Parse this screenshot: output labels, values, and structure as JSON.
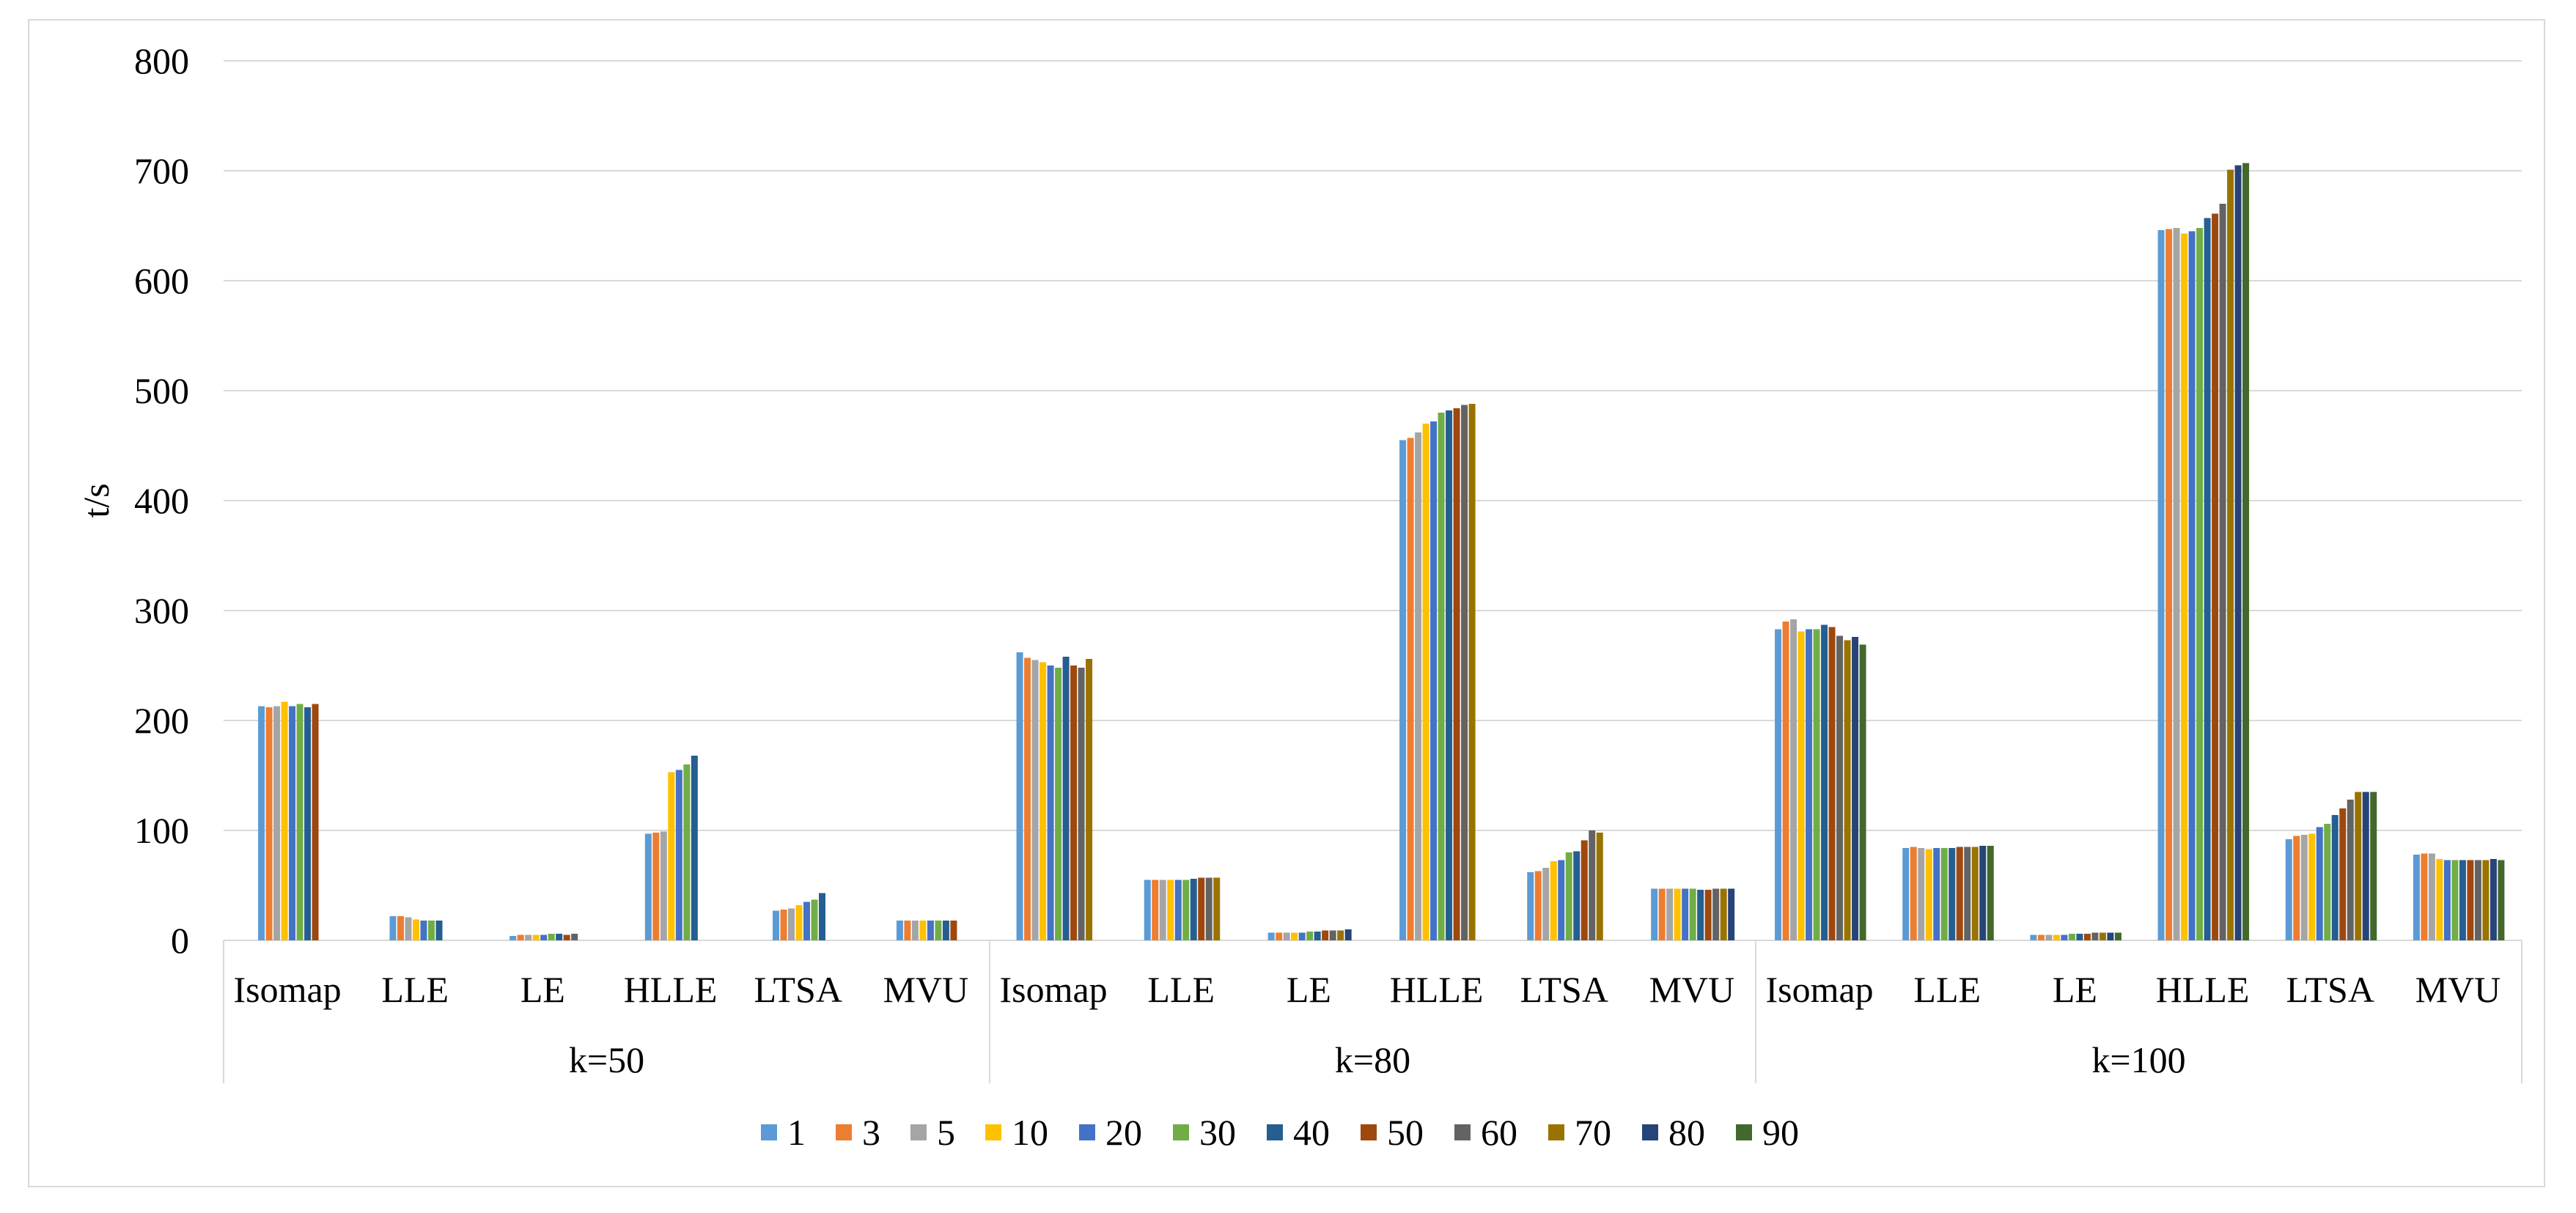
{
  "chart_data": {
    "type": "bar",
    "title": "",
    "xlabel": "",
    "ylabel": "t/s",
    "ylim": [
      0,
      800
    ],
    "yticks": [
      0,
      100,
      200,
      300,
      400,
      500,
      600,
      700,
      800
    ],
    "grid": true,
    "legend_position": "bottom",
    "groups": [
      "k=50",
      "k=80",
      "k=100"
    ],
    "categories": [
      "Isomap",
      "LLE",
      "LE",
      "HLLE",
      "LTSA",
      "MVU"
    ],
    "series_names": [
      "1",
      "3",
      "5",
      "10",
      "20",
      "30",
      "40",
      "50",
      "60",
      "70",
      "80",
      "90"
    ],
    "series_colors": [
      "#5B9BD5",
      "#ED7D31",
      "#A5A5A5",
      "#FFC000",
      "#4472C4",
      "#70AD47",
      "#255E91",
      "#9E480E",
      "#636363",
      "#997300",
      "#264478",
      "#43682B"
    ],
    "values": {
      "k=50": {
        "Isomap": [
          213,
          212,
          213,
          217,
          213,
          215,
          212,
          215
        ],
        "LLE": [
          22,
          22,
          21,
          19,
          18,
          18,
          18
        ],
        "LE": [
          4,
          5,
          5,
          5,
          5,
          6,
          6,
          5,
          6
        ],
        "HLLE": [
          97,
          98,
          99,
          153,
          155,
          160,
          168
        ],
        "LTSA": [
          27,
          28,
          29,
          32,
          35,
          37,
          43
        ],
        "MVU": [
          18,
          18,
          18,
          18,
          18,
          18,
          18,
          18
        ]
      },
      "k=80": {
        "Isomap": [
          262,
          257,
          255,
          253,
          250,
          248,
          258,
          250,
          248,
          256
        ],
        "LLE": [
          55,
          55,
          55,
          55,
          55,
          55,
          56,
          57,
          57,
          57
        ],
        "LE": [
          7,
          7,
          7,
          7,
          7,
          8,
          8,
          9,
          9,
          9,
          10
        ],
        "HLLE": [
          455,
          457,
          462,
          470,
          472,
          480,
          482,
          484,
          487,
          488
        ],
        "LTSA": [
          62,
          63,
          66,
          72,
          73,
          80,
          81,
          91,
          100,
          98
        ],
        "MVU": [
          47,
          47,
          47,
          47,
          47,
          47,
          46,
          46,
          47,
          47,
          47
        ]
      },
      "k=100": {
        "Isomap": [
          283,
          290,
          292,
          281,
          283,
          283,
          287,
          285,
          277,
          273,
          276,
          269
        ],
        "LLE": [
          84,
          85,
          84,
          83,
          84,
          84,
          84,
          85,
          85,
          85,
          86,
          86
        ],
        "LE": [
          5,
          5,
          5,
          5,
          5,
          6,
          6,
          6,
          7,
          7,
          7,
          7
        ],
        "HLLE": [
          646,
          647,
          648,
          643,
          645,
          648,
          657,
          661,
          670,
          701,
          705,
          707
        ],
        "LTSA": [
          92,
          95,
          96,
          97,
          103,
          106,
          114,
          120,
          128,
          135,
          135,
          135
        ],
        "MVU": [
          78,
          79,
          79,
          74,
          73,
          73,
          73,
          73,
          73,
          73,
          74,
          73
        ]
      }
    }
  }
}
